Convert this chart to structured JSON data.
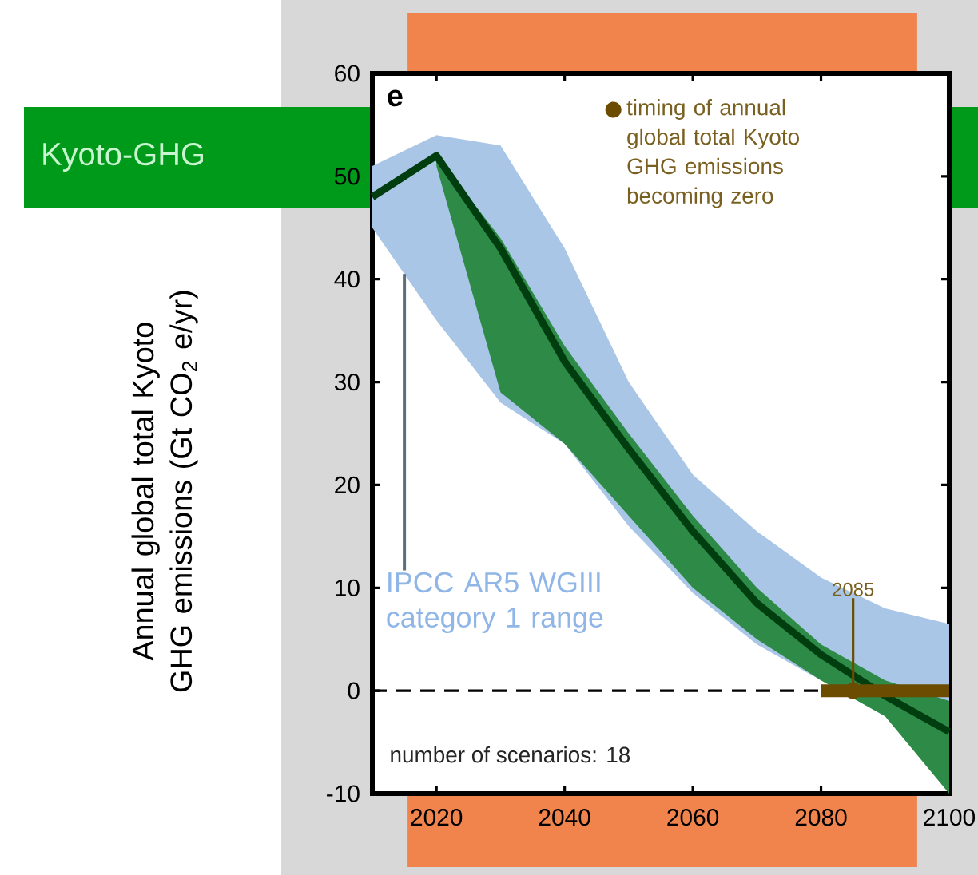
{
  "chart_data": {
    "type": "line",
    "title": "Kyoto-GHG",
    "ylabel": "Annual global total Kyoto GHG emissions (Gt CO$_{2}$ e/yr)",
    "x": [
      2010,
      2020,
      2030,
      2040,
      2050,
      2060,
      2070,
      2080,
      2090,
      2100
    ],
    "series": [
      {
        "type": "area",
        "name": "IPCC AR5 WGIII category 1 range",
        "color": "#a9c6e6",
        "values": [
          null,
          null,
          null,
          null,
          null,
          null,
          null,
          null,
          null,
          null
        ],
        "lower": [
          45,
          36,
          28,
          24,
          16,
          9.5,
          4.5,
          1,
          -1,
          -2.5
        ],
        "upper": [
          51,
          54,
          53,
          43,
          30,
          21,
          15.5,
          11,
          8,
          6.5
        ]
      },
      {
        "type": "area",
        "color": "#2e8b47",
        "x": [
          2020,
          2030,
          2040,
          2050,
          2060,
          2070,
          2080,
          2090,
          2100
        ],
        "values": [
          null,
          null,
          null,
          null,
          null,
          null,
          null,
          null,
          null
        ],
        "lower": [
          51,
          29,
          24,
          17,
          10,
          5,
          1,
          -2.5,
          -10
        ],
        "upper": [
          52,
          44,
          33.5,
          25,
          17,
          10,
          4.5,
          1,
          -1
        ]
      },
      {
        "color": "#003d0f",
        "values": [
          48,
          52,
          43,
          32,
          23.5,
          15.5,
          8.5,
          3.5,
          -0.5,
          -4
        ]
      },
      {
        "type": "scatter",
        "name": "timing of annual global total Kyoto GHG emissions becoming zero",
        "color": "#6b4c00",
        "marker": "circle",
        "x": [
          2085
        ],
        "values": [
          0
        ],
        "xerrors": [
          [
            2080,
            2100
          ]
        ]
      }
    ],
    "xlim": [
      2010,
      2100
    ],
    "ylim": [
      -10,
      60
    ],
    "xticks": [
      2020,
      2040,
      2060,
      2080,
      2100
    ],
    "yticks": [
      -10,
      0,
      10,
      20,
      30,
      40,
      50,
      60
    ],
    "ref_lines": [
      {
        "axis": "y",
        "value": 0,
        "line_style": "dashed",
        "color": "#000000"
      }
    ],
    "bands": [
      {
        "axis": "x",
        "from": 2015.5,
        "to": 2095,
        "color": "#f0844c"
      }
    ],
    "annotations": [
      "e",
      {
        "text": "2085",
        "x": 2085,
        "y": 9
      },
      "number of scenarios: 18"
    ],
    "legend": "top right",
    "grid": false
  }
}
